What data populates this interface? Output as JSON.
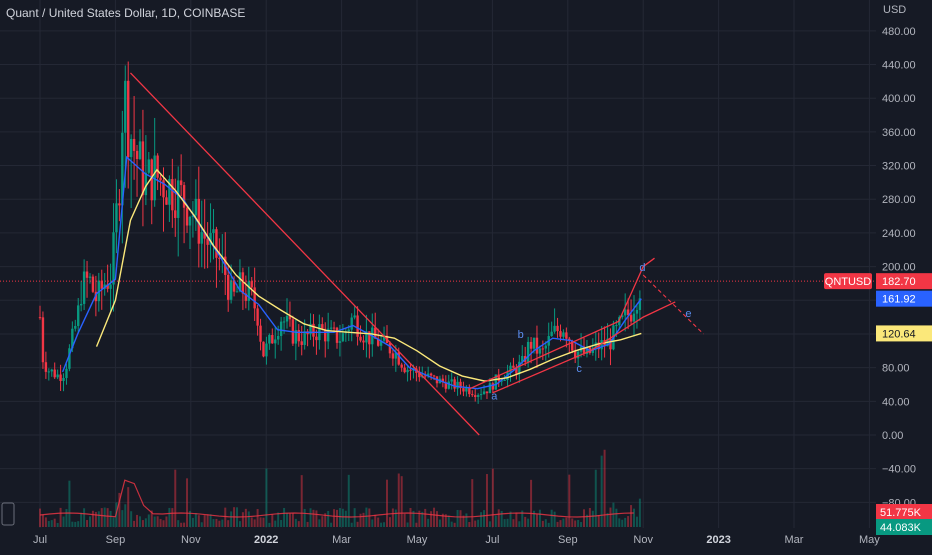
{
  "header": {
    "title": "Quant / United States Dollar, 1D, COINBASE",
    "currency": "USD"
  },
  "chart_data": {
    "type": "candlestick",
    "symbol": "QNTUSD",
    "y_ticks": [
      480,
      440,
      400,
      360,
      320,
      280,
      240,
      200,
      160,
      120,
      80,
      40,
      0,
      -40,
      -80
    ],
    "y_tick_labels": [
      "480.00",
      "440.00",
      "400.00",
      "360.00",
      "320.00",
      "280.00",
      "240.00",
      "200.00",
      "160.00",
      "120.00",
      "80.00",
      "40.00",
      "0.00",
      "−40.00",
      "−80.00"
    ],
    "x_tick_labels": [
      {
        "label": "Jul",
        "month_index": 0,
        "bold": false
      },
      {
        "label": "Sep",
        "month_index": 2,
        "bold": false
      },
      {
        "label": "Nov",
        "month_index": 4,
        "bold": false
      },
      {
        "label": "2022",
        "month_index": 6,
        "bold": true
      },
      {
        "label": "Mar",
        "month_index": 8,
        "bold": false
      },
      {
        "label": "May",
        "month_index": 10,
        "bold": false
      },
      {
        "label": "Jul",
        "month_index": 12,
        "bold": false
      },
      {
        "label": "Sep",
        "month_index": 14,
        "bold": false
      },
      {
        "label": "Nov",
        "month_index": 16,
        "bold": false
      },
      {
        "label": "2023",
        "month_index": 18,
        "bold": true
      },
      {
        "label": "Mar",
        "month_index": 20,
        "bold": false
      },
      {
        "label": "May",
        "month_index": 22,
        "bold": false
      }
    ],
    "price_path": [
      [
        0,
        140
      ],
      [
        0.05,
        95
      ],
      [
        0.2,
        78
      ],
      [
        0.5,
        70
      ],
      [
        0.65,
        75
      ],
      [
        1.0,
        140
      ],
      [
        1.1,
        175
      ],
      [
        1.3,
        185
      ],
      [
        1.5,
        160
      ],
      [
        1.7,
        180
      ],
      [
        1.9,
        190
      ],
      [
        2.1,
        300
      ],
      [
        2.22,
        420
      ],
      [
        2.3,
        380
      ],
      [
        2.5,
        340
      ],
      [
        2.8,
        300
      ],
      [
        3.0,
        310
      ],
      [
        3.3,
        300
      ],
      [
        3.6,
        290
      ],
      [
        4.0,
        270
      ],
      [
        4.3,
        240
      ],
      [
        4.6,
        220
      ],
      [
        4.9,
        195
      ],
      [
        5.1,
        160
      ],
      [
        5.3,
        175
      ],
      [
        5.6,
        165
      ],
      [
        5.8,
        140
      ],
      [
        5.9,
        95
      ],
      [
        6.1,
        110
      ],
      [
        6.4,
        140
      ],
      [
        6.7,
        120
      ],
      [
        7.0,
        115
      ],
      [
        7.4,
        125
      ],
      [
        7.7,
        118
      ],
      [
        8.0,
        115
      ],
      [
        8.3,
        140
      ],
      [
        8.6,
        120
      ],
      [
        9.0,
        110
      ],
      [
        9.4,
        100
      ],
      [
        9.7,
        80
      ],
      [
        10.1,
        72
      ],
      [
        10.5,
        65
      ],
      [
        10.9,
        60
      ],
      [
        11.3,
        55
      ],
      [
        11.6,
        50
      ],
      [
        11.9,
        55
      ],
      [
        12.2,
        70
      ],
      [
        12.5,
        75
      ],
      [
        12.8,
        85
      ],
      [
        13.0,
        110
      ],
      [
        13.3,
        95
      ],
      [
        13.6,
        120
      ],
      [
        13.9,
        130
      ],
      [
        14.2,
        100
      ],
      [
        14.5,
        95
      ],
      [
        14.8,
        105
      ],
      [
        15.1,
        110
      ],
      [
        15.4,
        130
      ],
      [
        15.7,
        150
      ],
      [
        15.95,
        182.7
      ]
    ],
    "series": [
      {
        "name": "",
        "color": "#2962ff",
        "values": [
          [
            0.6,
            75
          ],
          [
            1.0,
            120
          ],
          [
            1.5,
            168
          ],
          [
            2.0,
            185
          ],
          [
            2.3,
            330
          ],
          [
            2.8,
            310
          ],
          [
            3.3,
            298
          ],
          [
            3.8,
            280
          ],
          [
            4.3,
            245
          ],
          [
            4.8,
            210
          ],
          [
            5.3,
            172
          ],
          [
            5.8,
            155
          ],
          [
            6.3,
            125
          ],
          [
            6.8,
            122
          ],
          [
            7.3,
            122
          ],
          [
            7.8,
            122
          ],
          [
            8.3,
            130
          ],
          [
            8.8,
            118
          ],
          [
            9.3,
            105
          ],
          [
            9.8,
            80
          ],
          [
            10.4,
            68
          ],
          [
            11.0,
            58
          ],
          [
            11.6,
            55
          ],
          [
            12.1,
            60
          ],
          [
            12.6,
            78
          ],
          [
            13.1,
            100
          ],
          [
            13.6,
            115
          ],
          [
            14.1,
            112
          ],
          [
            14.6,
            100
          ],
          [
            15.1,
            108
          ],
          [
            15.5,
            135
          ],
          [
            15.95,
            161.92
          ]
        ]
      },
      {
        "name": "",
        "color": "#fbe87a",
        "values": [
          [
            1.5,
            105
          ],
          [
            2.0,
            160
          ],
          [
            2.4,
            255
          ],
          [
            2.8,
            295
          ],
          [
            3.1,
            315
          ],
          [
            3.6,
            290
          ],
          [
            4.1,
            260
          ],
          [
            4.6,
            225
          ],
          [
            5.2,
            190
          ],
          [
            5.8,
            165
          ],
          [
            6.4,
            148
          ],
          [
            7.0,
            132
          ],
          [
            7.6,
            124
          ],
          [
            8.2,
            122
          ],
          [
            8.8,
            120
          ],
          [
            9.4,
            115
          ],
          [
            10.0,
            100
          ],
          [
            10.6,
            82
          ],
          [
            11.2,
            70
          ],
          [
            11.8,
            64
          ],
          [
            12.4,
            68
          ],
          [
            13.0,
            78
          ],
          [
            13.6,
            90
          ],
          [
            14.2,
            100
          ],
          [
            14.8,
            108
          ],
          [
            15.4,
            113
          ],
          [
            15.95,
            120.64
          ]
        ]
      }
    ],
    "last_price": 182.7,
    "price_labels": [
      {
        "value": "182.70",
        "price": 182.7,
        "color": "#f23645"
      },
      {
        "value": "161.92",
        "price": 161.92,
        "color": "#2962ff"
      },
      {
        "value": "120.64",
        "price": 120.64,
        "color": "#fbe87a"
      }
    ],
    "wave_labels": [
      {
        "text": "a",
        "month": 12.05,
        "price": 42
      },
      {
        "text": "b",
        "month": 12.75,
        "price": 115
      },
      {
        "text": "c",
        "month": 14.3,
        "price": 75
      },
      {
        "text": "d",
        "month": 15.98,
        "price": 195
      },
      {
        "text": "e",
        "month": 17.2,
        "price": 140
      }
    ],
    "volume_labels": [
      {
        "value": "51.775K",
        "color": "#f23645"
      },
      {
        "value": "44.083K",
        "color": "#089981"
      }
    ],
    "colors": {
      "up": "#089981",
      "down": "#f23645",
      "channel": "#f23645",
      "background": "#161a25",
      "grid": "#242835"
    }
  }
}
